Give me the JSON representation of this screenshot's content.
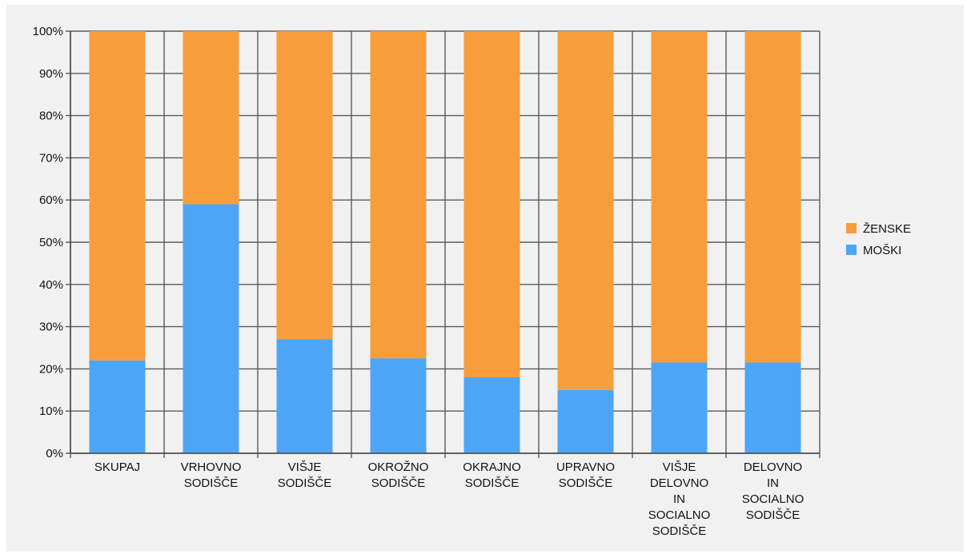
{
  "chart_data": {
    "type": "bar",
    "stacked": true,
    "normalized": true,
    "categories": [
      [
        "SKUPAJ"
      ],
      [
        "VRHOVNO",
        "SODIŠČE"
      ],
      [
        "VIŠJE",
        "SODIŠČE"
      ],
      [
        "OKROŽNO",
        "SODIŠČE"
      ],
      [
        "OKRAJNO",
        "SODIŠČE"
      ],
      [
        "UPRAVNO",
        "SODIŠČE"
      ],
      [
        "VIŠJE",
        "DELOVNO",
        "IN",
        "SOCIALNO",
        "SODIŠČE"
      ],
      [
        "DELOVNO",
        "IN",
        "SOCIALNO",
        "SODIŠČE"
      ]
    ],
    "series": [
      {
        "name": "MOŠKI",
        "color": "#4da6f5",
        "values": [
          22,
          59,
          27,
          22.5,
          18,
          15,
          21.5,
          21.5
        ]
      },
      {
        "name": "ŽENSKE",
        "color": "#f89d3c",
        "values": [
          78,
          41,
          73,
          77.5,
          82,
          85,
          78.5,
          78.5
        ]
      }
    ],
    "legend_order": [
      "ŽENSKE",
      "MOŠKI"
    ],
    "legend_position": "right",
    "ylim": [
      0,
      100
    ],
    "yticks": [
      0,
      10,
      20,
      30,
      40,
      50,
      60,
      70,
      80,
      90,
      100
    ],
    "ytick_suffix": "%",
    "grid": true
  }
}
